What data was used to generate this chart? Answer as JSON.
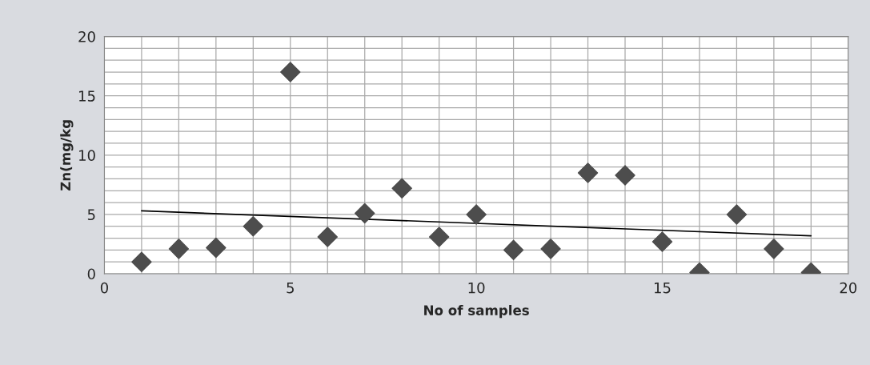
{
  "chart_data": {
    "type": "scatter",
    "xlabel": "No of samples",
    "ylabel": "Zn(mg/kg",
    "xlim": [
      0,
      20
    ],
    "ylim": [
      0,
      20
    ],
    "xticks": [
      0,
      5,
      10,
      15,
      20
    ],
    "yticks": [
      0,
      5,
      10,
      15,
      20
    ],
    "grid": true,
    "marker": "diamond",
    "series": [
      {
        "color": "#4d4d4d",
        "x": [
          1,
          2,
          3,
          4,
          5,
          6,
          7,
          8,
          9,
          10,
          11,
          12,
          13,
          14,
          15,
          16,
          17,
          18,
          19
        ],
        "values": [
          1.0,
          2.1,
          2.2,
          4.0,
          17.0,
          3.1,
          5.1,
          7.2,
          3.1,
          5.0,
          2.0,
          2.1,
          8.5,
          8.3,
          2.7,
          0.1,
          5.0,
          2.1,
          0.1
        ]
      },
      {
        "type": "line",
        "color": "#000000",
        "marker": "none",
        "x": [
          1,
          19
        ],
        "values": [
          5.3,
          3.2
        ]
      }
    ]
  }
}
